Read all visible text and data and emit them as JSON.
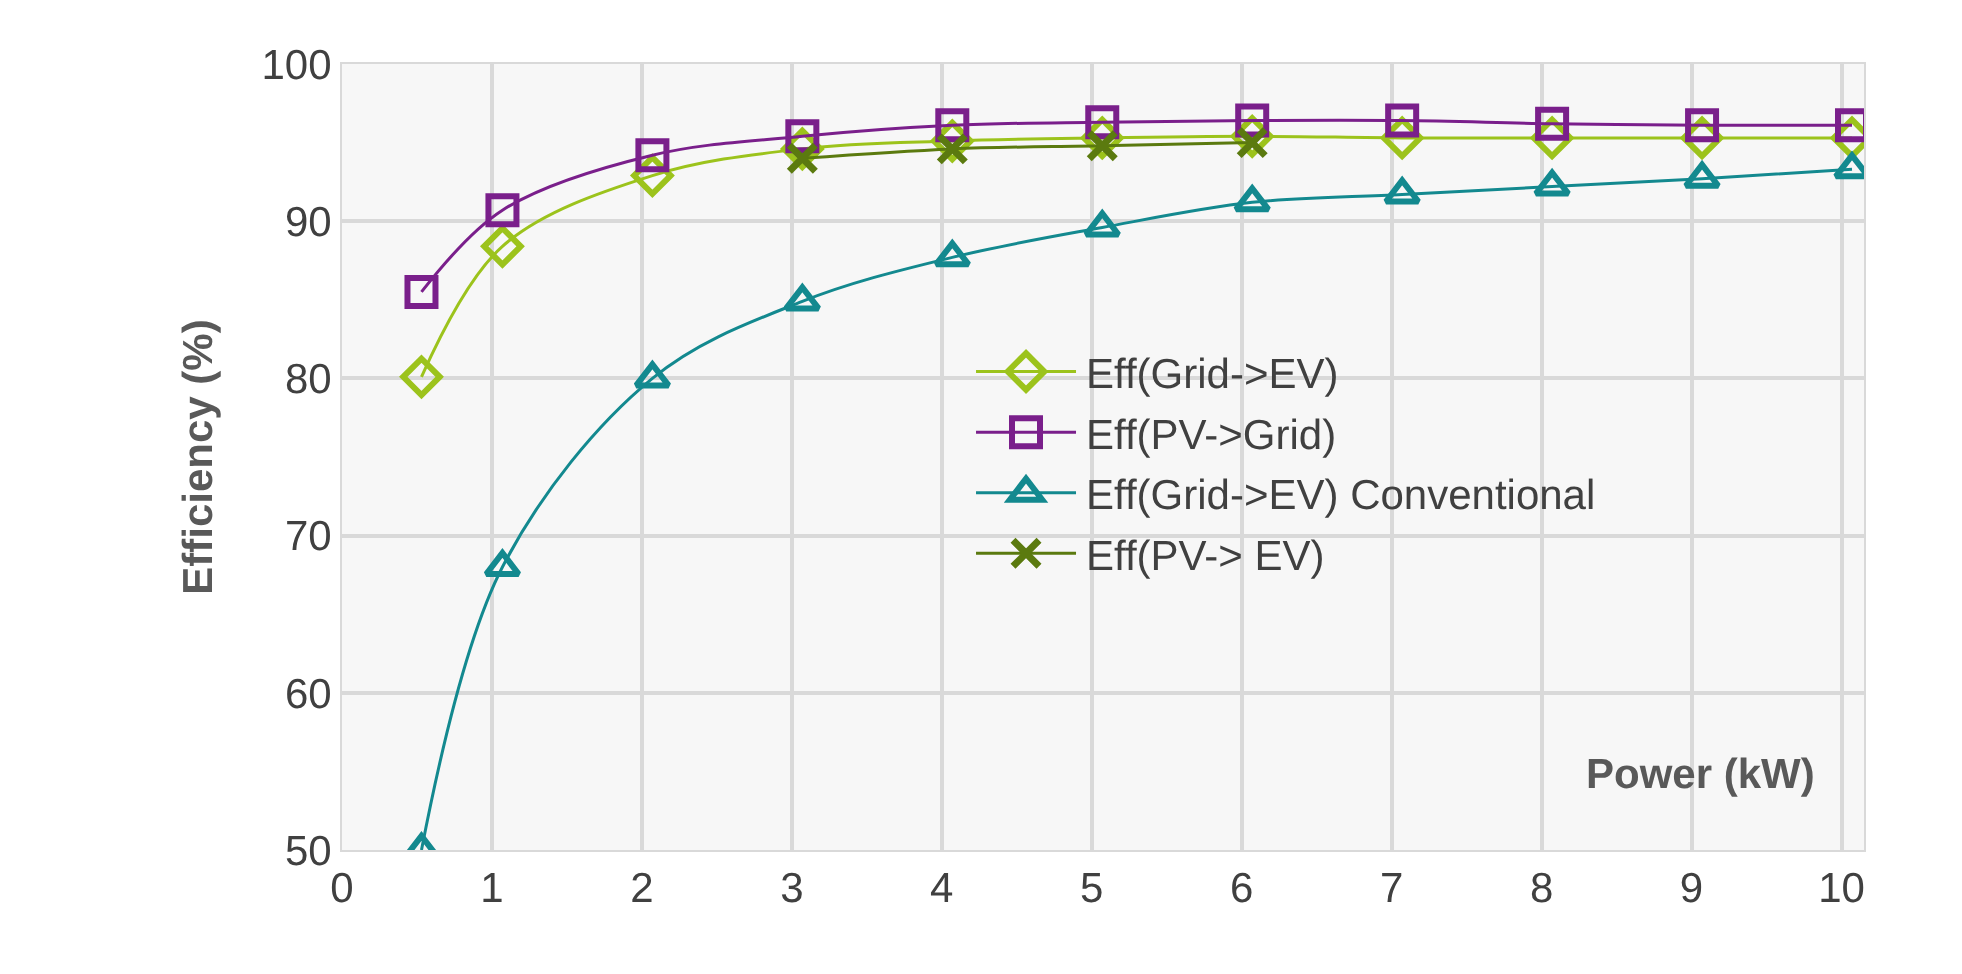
{
  "chart_data": {
    "type": "line",
    "xlabel": "Power (kW)",
    "ylabel": "Efficiency (%)",
    "xlim": [
      0,
      10.15
    ],
    "xticks": [
      0,
      1,
      2,
      3,
      4,
      5,
      6,
      7,
      8,
      9,
      10
    ],
    "ylim": [
      50,
      100
    ],
    "yticks": [
      50,
      60,
      70,
      80,
      90,
      100
    ],
    "grid": true,
    "legend": "right",
    "series": [
      {
        "name": "Eff(Grid->EV)",
        "color": "#9cc31c",
        "marker": "diamond",
        "x": [
          0.53,
          1.07,
          2.07,
          3.07,
          4.07,
          5.07,
          6.07,
          7.07,
          8.07,
          9.07,
          10.07
        ],
        "values": [
          80.1,
          88.4,
          92.9,
          94.6,
          95.1,
          95.3,
          95.4,
          95.3,
          95.3,
          95.3,
          95.3
        ]
      },
      {
        "name": "Eff(PV->Grid)",
        "color": "#7a1f8b",
        "marker": "square",
        "x": [
          0.53,
          1.07,
          2.07,
          3.07,
          4.07,
          5.07,
          6.07,
          7.07,
          8.07,
          9.07,
          10.07
        ],
        "values": [
          85.5,
          90.7,
          94.2,
          95.4,
          96.1,
          96.3,
          96.4,
          96.4,
          96.2,
          96.1,
          96.1
        ]
      },
      {
        "name": "Eff(Grid->EV) Conventional",
        "color": "#13898f",
        "marker": "triangle",
        "x": [
          0.53,
          1.07,
          2.07,
          3.07,
          4.07,
          5.07,
          6.07,
          7.07,
          8.07,
          9.07,
          10.07
        ],
        "values": [
          50.0,
          68.0,
          80.0,
          84.9,
          87.7,
          89.6,
          91.2,
          91.7,
          92.2,
          92.7,
          93.3
        ]
      },
      {
        "name": "Eff(PV-> EV)",
        "color": "#5b7a0f",
        "marker": "cross",
        "x": [
          3.07,
          4.07,
          5.07,
          6.07
        ],
        "values": [
          94.0,
          94.6,
          94.8,
          95.0
        ]
      }
    ]
  }
}
